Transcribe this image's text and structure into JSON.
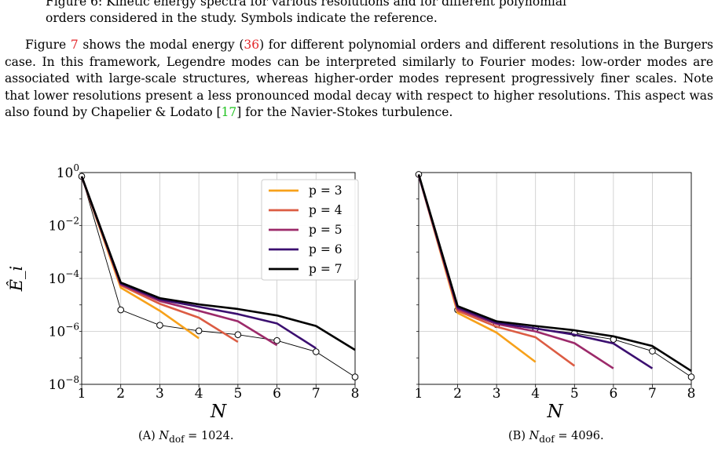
{
  "figure_caption_fragment": {
    "line1": "Figure 6: Kinetic energy spectra for various resolutions and for different polynomial",
    "line2": "orders considered in the study. Symbols indicate the reference."
  },
  "paragraph": {
    "s1_a": "Figure ",
    "s1_ref_fig": "7",
    "s1_b": " shows the modal energy (",
    "s1_ref_eq": "36",
    "s1_c": ") for different polynomial orders and different resolutions in the Burgers case. In this framework, Legendre modes can be interpreted similarly to Fourier modes: low-order modes are associated with large-scale structures, whereas higher-order modes represent progressively finer scales. Note that lower resolutions present a less pronounced modal decay with respect to higher resolutions. This aspect was also found by Chapelier & Lodato [",
    "s1_ref_cite": "17",
    "s1_d": "] for the Navier-Stokes turbulence."
  },
  "colors": {
    "p3": "#f7a11a",
    "p4": "#dc5c43",
    "p5": "#9c2a6a",
    "p6": "#3b0f70",
    "p7": "#000000",
    "reference": "#000000",
    "grid": "#c8c8c8",
    "ref_red": "#e3262a",
    "ref_green": "#22c322"
  },
  "chart_data": [
    {
      "type": "line",
      "panel": "A",
      "caption_prefix": "(A)",
      "caption_var": "N",
      "caption_sub": "dof",
      "caption_value": " = 1024.",
      "xlabel": "N",
      "ylabel": "Ê_i",
      "xlim": [
        1,
        8
      ],
      "ylim": [
        1e-08,
        1
      ],
      "yscale": "log",
      "grid": true,
      "legend_position": "top-right",
      "x_ticks": [
        "1",
        "2",
        "3",
        "4",
        "5",
        "6",
        "7",
        "8"
      ],
      "y_ticks": [
        {
          "base": "10",
          "exp": "0",
          "value": 1
        },
        {
          "base": "10",
          "exp": "−2",
          "value": 0.01
        },
        {
          "base": "10",
          "exp": "−4",
          "value": 0.0001
        },
        {
          "base": "10",
          "exp": "−6",
          "value": 1e-06
        },
        {
          "base": "10",
          "exp": "−8",
          "value": 1e-08
        }
      ],
      "series": [
        {
          "name": "p = 3",
          "key": "p3",
          "x": [
            1,
            2,
            3,
            4
          ],
          "values": [
            0.7,
            4.5e-05,
            6e-06,
            5.5e-07
          ]
        },
        {
          "name": "p = 4",
          "key": "p4",
          "x": [
            1,
            2,
            3,
            4,
            5
          ],
          "values": [
            0.7,
            5.5e-05,
            1.1e-05,
            3.3e-06,
            4e-07
          ]
        },
        {
          "name": "p = 5",
          "key": "p5",
          "x": [
            1,
            2,
            3,
            4,
            5,
            6
          ],
          "values": [
            0.7,
            6e-05,
            1.4e-05,
            6e-06,
            2.4e-06,
            3e-07
          ]
        },
        {
          "name": "p = 6",
          "key": "p6",
          "x": [
            1,
            2,
            3,
            4,
            5,
            6,
            7
          ],
          "values": [
            0.7,
            6.5e-05,
            1.6e-05,
            8.5e-06,
            4.5e-06,
            2e-06,
            2.3e-07
          ]
        },
        {
          "name": "p = 7",
          "key": "p7",
          "x": [
            1,
            2,
            3,
            4,
            5,
            6,
            7,
            8
          ],
          "values": [
            0.72,
            7e-05,
            1.8e-05,
            1.05e-05,
            7e-06,
            4e-06,
            1.6e-06,
            2e-07
          ]
        }
      ],
      "reference": {
        "x": [
          1,
          2,
          3,
          4,
          5,
          6,
          7,
          8
        ],
        "values": [
          0.72,
          6.5e-06,
          1.7e-06,
          1.05e-06,
          7.5e-07,
          4.5e-07,
          1.7e-07,
          1.9e-08
        ]
      }
    },
    {
      "type": "line",
      "panel": "B",
      "caption_prefix": "(B)",
      "caption_var": "N",
      "caption_sub": "dof",
      "caption_value": " = 4096.",
      "xlabel": "N",
      "xlim": [
        1,
        8
      ],
      "ylim": [
        1e-08,
        1
      ],
      "yscale": "log",
      "grid": true,
      "x_ticks": [
        "1",
        "2",
        "3",
        "4",
        "5",
        "6",
        "7",
        "8"
      ],
      "series": [
        {
          "name": "p = 3",
          "key": "p3",
          "x": [
            1,
            2,
            3,
            4
          ],
          "values": [
            0.8,
            5e-06,
            9e-07,
            7e-08
          ]
        },
        {
          "name": "p = 4",
          "key": "p4",
          "x": [
            1,
            2,
            3,
            4,
            5
          ],
          "values": [
            0.8,
            6e-06,
            1.5e-06,
            6e-07,
            5e-08
          ]
        },
        {
          "name": "p = 5",
          "key": "p5",
          "x": [
            1,
            2,
            3,
            4,
            5,
            6
          ],
          "values": [
            0.8,
            7e-06,
            1.9e-06,
            1e-06,
            3.6e-07,
            4e-08
          ]
        },
        {
          "name": "p = 6",
          "key": "p6",
          "x": [
            1,
            2,
            3,
            4,
            5,
            6,
            7
          ],
          "values": [
            0.8,
            8e-06,
            2.1e-06,
            1.3e-06,
            7.5e-07,
            3.5e-07,
            4e-08
          ]
        },
        {
          "name": "p = 7",
          "key": "p7",
          "x": [
            1,
            2,
            3,
            4,
            5,
            6,
            7,
            8
          ],
          "values": [
            0.85,
            9e-06,
            2.4e-06,
            1.6e-06,
            1.1e-06,
            6.5e-07,
            2.8e-07,
            3.2e-08
          ]
        }
      ],
      "reference": {
        "x": [
          1,
          2,
          3,
          4,
          5,
          6,
          7,
          8
        ],
        "values": [
          0.85,
          6.5e-06,
          1.8e-06,
          1.3e-06,
          8.5e-07,
          5e-07,
          1.8e-07,
          1.9e-08
        ]
      }
    }
  ]
}
